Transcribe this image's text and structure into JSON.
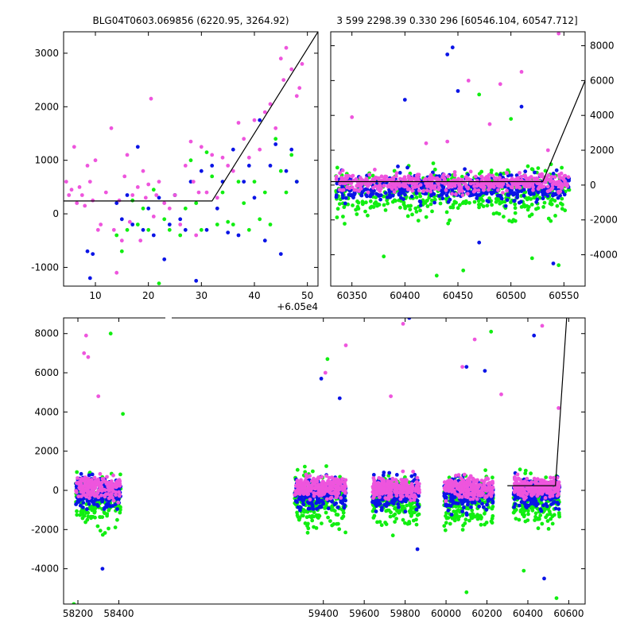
{
  "colors": {
    "magenta": "#ee55dd",
    "blue": "#0a14e6",
    "green": "#11ee11",
    "model": "#000000"
  },
  "chart_data": [
    {
      "id": "zoom",
      "type": "scatter",
      "title": "BLG04T0603.069856 (6220.95, 3264.92)",
      "x_offset_label": "+6.05e4",
      "xlim": [
        4,
        52
      ],
      "ylim": [
        -1350,
        3400
      ],
      "xticks": [
        10,
        20,
        30,
        40,
        50
      ],
      "yticks": [
        -1000,
        0,
        1000,
        2000,
        3000
      ],
      "model_line": [
        [
          4,
          240
        ],
        [
          32,
          240
        ],
        [
          52,
          3400
        ]
      ],
      "series": [
        {
          "color": "magenta",
          "points": [
            [
              4.5,
              600
            ],
            [
              5,
              350
            ],
            [
              5.5,
              450
            ],
            [
              6,
              1250
            ],
            [
              6.5,
              200
            ],
            [
              7,
              500
            ],
            [
              7.5,
              350
            ],
            [
              8,
              150
            ],
            [
              8.5,
              900
            ],
            [
              9,
              600
            ],
            [
              9.5,
              250
            ],
            [
              10,
              1000
            ],
            [
              10.5,
              -300
            ],
            [
              11,
              -200
            ],
            [
              12,
              400
            ],
            [
              13,
              1600
            ],
            [
              13.5,
              -300
            ],
            [
              14,
              -1100
            ],
            [
              14.5,
              250
            ],
            [
              15,
              -500
            ],
            [
              15.5,
              700
            ],
            [
              16,
              1100
            ],
            [
              16.5,
              -150
            ],
            [
              17,
              350
            ],
            [
              18,
              500
            ],
            [
              18.5,
              -500
            ],
            [
              19,
              800
            ],
            [
              19.5,
              300
            ],
            [
              20,
              550
            ],
            [
              20.5,
              2150
            ],
            [
              21,
              -50
            ],
            [
              21.5,
              350
            ],
            [
              22,
              600
            ],
            [
              23,
              200
            ],
            [
              24,
              100
            ],
            [
              25,
              350
            ],
            [
              26,
              -200
            ],
            [
              27,
              900
            ],
            [
              28,
              1350
            ],
            [
              28.5,
              600
            ],
            [
              29,
              -400
            ],
            [
              29.5,
              400
            ],
            [
              30,
              1250
            ],
            [
              31,
              400
            ],
            [
              32,
              1100
            ],
            [
              33,
              300
            ],
            [
              34,
              1050
            ],
            [
              35,
              900
            ],
            [
              36,
              800
            ],
            [
              37,
              1700
            ],
            [
              38,
              1400
            ],
            [
              39,
              1050
            ],
            [
              40,
              1750
            ],
            [
              41,
              1200
            ],
            [
              42,
              1900
            ],
            [
              43,
              2050
            ],
            [
              44,
              1600
            ],
            [
              45,
              2900
            ],
            [
              45.5,
              2500
            ],
            [
              46,
              3100
            ],
            [
              47,
              2700
            ],
            [
              48,
              2200
            ],
            [
              48.5,
              2350
            ],
            [
              49,
              2800
            ]
          ]
        },
        {
          "color": "blue",
          "points": [
            [
              8.5,
              -700
            ],
            [
              9,
              -1200
            ],
            [
              9.5,
              -750
            ],
            [
              14,
              200
            ],
            [
              15,
              -100
            ],
            [
              16,
              350
            ],
            [
              17,
              -200
            ],
            [
              18,
              1250
            ],
            [
              19,
              -300
            ],
            [
              20,
              100
            ],
            [
              21,
              -400
            ],
            [
              22,
              300
            ],
            [
              23,
              -850
            ],
            [
              24,
              -200
            ],
            [
              25,
              350
            ],
            [
              26,
              -100
            ],
            [
              27,
              -300
            ],
            [
              28,
              600
            ],
            [
              29,
              -1250
            ],
            [
              30,
              800
            ],
            [
              31,
              -300
            ],
            [
              32,
              900
            ],
            [
              33,
              100
            ],
            [
              34,
              600
            ],
            [
              35,
              -350
            ],
            [
              36,
              1200
            ],
            [
              37,
              -400
            ],
            [
              38,
              600
            ],
            [
              39,
              900
            ],
            [
              40,
              300
            ],
            [
              41,
              1750
            ],
            [
              42,
              -500
            ],
            [
              43,
              900
            ],
            [
              44,
              1300
            ],
            [
              45,
              -750
            ],
            [
              46,
              800
            ],
            [
              47,
              1200
            ],
            [
              48,
              600
            ]
          ]
        },
        {
          "color": "green",
          "points": [
            [
              14,
              -400
            ],
            [
              15,
              -700
            ],
            [
              16,
              -300
            ],
            [
              17,
              250
            ],
            [
              18,
              -200
            ],
            [
              19,
              100
            ],
            [
              20,
              -300
            ],
            [
              21,
              450
            ],
            [
              22,
              -1300
            ],
            [
              23,
              -100
            ],
            [
              24,
              -300
            ],
            [
              25,
              350
            ],
            [
              26,
              -400
            ],
            [
              27,
              100
            ],
            [
              28,
              1000
            ],
            [
              29,
              200
            ],
            [
              30,
              -300
            ],
            [
              31,
              1150
            ],
            [
              32,
              700
            ],
            [
              33,
              -200
            ],
            [
              34,
              400
            ],
            [
              35,
              -150
            ],
            [
              36,
              -200
            ],
            [
              37,
              600
            ],
            [
              38,
              200
            ],
            [
              39,
              -300
            ],
            [
              40,
              600
            ],
            [
              41,
              -100
            ],
            [
              42,
              400
            ],
            [
              43,
              -200
            ],
            [
              44,
              1400
            ],
            [
              45,
              800
            ],
            [
              46,
              400
            ],
            [
              47,
              1100
            ],
            [
              48,
              600
            ]
          ]
        }
      ]
    },
    {
      "id": "recent",
      "type": "scatter",
      "title": "3 599 2298.39 0.330 296 [60546.104, 60547.712]",
      "xlim": [
        60330,
        60570
      ],
      "ylim": [
        -5800,
        8800
      ],
      "xticks": [
        60350,
        60400,
        60450,
        60500,
        60550
      ],
      "yticks": [
        -4000,
        -2000,
        0,
        2000,
        4000,
        6000,
        8000
      ],
      "model_line": [
        [
          60330,
          200
        ],
        [
          60530,
          200
        ],
        [
          60570,
          6000
        ]
      ],
      "ranges": [
        [
          60335,
          60555
        ]
      ],
      "spread": [
        [
          -2500,
          1500
        ],
        [
          -4000,
          1000
        ],
        [
          -5000,
          600
        ]
      ],
      "outliers": [
        {
          "color": "magenta",
          "points": [
            [
              60350,
              3900
            ],
            [
              60390,
              -400
            ],
            [
              60440,
              2500
            ],
            [
              60460,
              6000
            ],
            [
              60490,
              5800
            ],
            [
              60510,
              6500
            ],
            [
              60545,
              8700
            ],
            [
              60420,
              2400
            ],
            [
              60480,
              3500
            ],
            [
              60535,
              2000
            ]
          ]
        },
        {
          "color": "blue",
          "points": [
            [
              60400,
              4900
            ],
            [
              60440,
              7500
            ],
            [
              60445,
              7900
            ],
            [
              60450,
              5400
            ],
            [
              60510,
              4500
            ],
            [
              60540,
              -4500
            ],
            [
              60470,
              -3300
            ]
          ]
        },
        {
          "color": "green",
          "points": [
            [
              60380,
              -4100
            ],
            [
              60430,
              -5200
            ],
            [
              60455,
              -4900
            ],
            [
              60470,
              5200
            ],
            [
              60500,
              3800
            ],
            [
              60520,
              -4200
            ],
            [
              60545,
              -4600
            ]
          ]
        }
      ]
    },
    {
      "id": "full",
      "type": "scatter",
      "xlim": [
        58130,
        60680
      ],
      "ylim": [
        -5800,
        8800
      ],
      "xticks": [
        58200,
        58400,
        59400,
        59600,
        59800,
        60000,
        60200,
        60400,
        60600
      ],
      "yticks": [
        -4000,
        -2000,
        0,
        2000,
        4000,
        6000,
        8000
      ],
      "model_line": [
        [
          60300,
          240
        ],
        [
          60535,
          240
        ],
        [
          60590,
          8800
        ]
      ],
      "ranges": [
        [
          58190,
          58410
        ],
        [
          59260,
          59510
        ],
        [
          59640,
          59870
        ],
        [
          59990,
          60230
        ],
        [
          60330,
          60555
        ]
      ],
      "spread": [
        [
          -2800,
          1800
        ],
        [
          -4500,
          1300
        ],
        [
          -5500,
          900
        ]
      ],
      "outliers": [
        {
          "color": "magenta",
          "points": [
            [
              58240,
              7900
            ],
            [
              58250,
              6800
            ],
            [
              58230,
              7000
            ],
            [
              58300,
              4800
            ],
            [
              59410,
              6000
            ],
            [
              59510,
              7400
            ],
            [
              59730,
              4800
            ],
            [
              59790,
              8500
            ],
            [
              60080,
              6300
            ],
            [
              60140,
              7700
            ],
            [
              60270,
              4900
            ],
            [
              60470,
              8400
            ],
            [
              60550,
              4200
            ]
          ]
        },
        {
          "color": "blue",
          "points": [
            [
              58320,
              -4000
            ],
            [
              59390,
              5700
            ],
            [
              59480,
              4700
            ],
            [
              59820,
              8800
            ],
            [
              59860,
              -3000
            ],
            [
              60100,
              6300
            ],
            [
              60190,
              6100
            ],
            [
              60430,
              7900
            ],
            [
              60480,
              -4500
            ]
          ]
        },
        {
          "color": "green",
          "points": [
            [
              58360,
              8000
            ],
            [
              58420,
              3900
            ],
            [
              58180,
              -5800
            ],
            [
              59420,
              6700
            ],
            [
              59740,
              -2300
            ],
            [
              60220,
              8100
            ],
            [
              60100,
              -5200
            ],
            [
              60380,
              -4100
            ],
            [
              60540,
              -5500
            ]
          ]
        }
      ]
    }
  ]
}
